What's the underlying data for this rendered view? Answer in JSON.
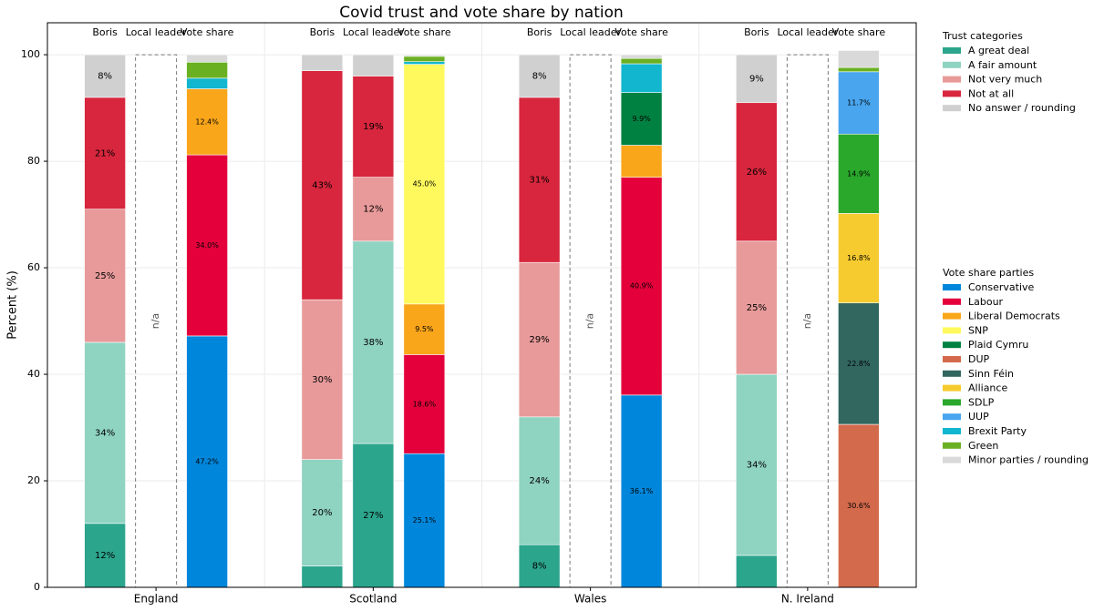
{
  "chart_data": {
    "type": "grouped_stacked_bar",
    "title": "Covid trust and vote share by nation",
    "y_label": "Percent (%)",
    "ylim": [
      0,
      106
    ],
    "yticks": [
      0,
      20,
      40,
      60,
      80,
      100
    ],
    "grid": true,
    "categories": [
      "England",
      "Scotland",
      "Wales",
      "N. Ireland"
    ],
    "bar_labels": [
      "Boris",
      "Local leader",
      "Vote share"
    ],
    "na_label": "n/a",
    "trust_legend_title": "Trust categories",
    "trust_series": [
      {
        "name": "A great deal",
        "color": "#2ca58d",
        "boris": [
          12,
          4,
          8,
          6
        ],
        "boris_labels": [
          "12%",
          null,
          "8%",
          null
        ],
        "local": [
          null,
          27,
          null,
          null
        ],
        "local_labels": [
          null,
          "27%",
          null,
          null
        ]
      },
      {
        "name": "A fair amount",
        "color": "#8fd3c1",
        "boris": [
          34,
          20,
          24,
          34
        ],
        "boris_labels": [
          "34%",
          "20%",
          "24%",
          "34%"
        ],
        "local": [
          null,
          38,
          null,
          null
        ],
        "local_labels": [
          null,
          "38%",
          null,
          null
        ]
      },
      {
        "name": "Not very much",
        "color": "#e89a9a",
        "boris": [
          25,
          30,
          29,
          25
        ],
        "boris_labels": [
          "25%",
          "30%",
          "29%",
          "25%"
        ],
        "local": [
          null,
          12,
          null,
          null
        ],
        "local_labels": [
          null,
          "12%",
          null,
          null
        ]
      },
      {
        "name": "Not at all",
        "color": "#d7263d",
        "boris": [
          21,
          43,
          31,
          26
        ],
        "boris_labels": [
          "21%",
          "43%",
          "31%",
          "26%"
        ],
        "local": [
          null,
          19,
          null,
          null
        ],
        "local_labels": [
          null,
          "19%",
          null,
          null
        ]
      },
      {
        "name": "No answer / rounding",
        "color": "#d0d0d0",
        "boris": [
          8,
          3,
          8,
          9
        ],
        "boris_labels": [
          "8%",
          null,
          "8%",
          "9%"
        ],
        "local": [
          null,
          4,
          null,
          null
        ],
        "local_labels": [
          null,
          null,
          null,
          null
        ]
      }
    ],
    "vote_legend_title": "Vote share parties",
    "vote_series": [
      {
        "name": "Conservative",
        "color": "#0087dc",
        "values": [
          47.2,
          25.1,
          36.1,
          null
        ],
        "value_labels": [
          "47.2%",
          "25.1%",
          "36.1%",
          null
        ]
      },
      {
        "name": "Labour",
        "color": "#e4003b",
        "values": [
          34.0,
          18.6,
          40.9,
          null
        ],
        "value_labels": [
          "34.0%",
          "18.6%",
          "40.9%",
          null
        ]
      },
      {
        "name": "Liberal Democrats",
        "color": "#faa61a",
        "values": [
          12.4,
          9.5,
          6.0,
          null
        ],
        "value_labels": [
          "12.4%",
          "9.5%",
          null,
          null
        ]
      },
      {
        "name": "SNP",
        "color": "#fff95d",
        "values": [
          null,
          45.0,
          null,
          null
        ],
        "value_labels": [
          null,
          "45.0%",
          null,
          null
        ]
      },
      {
        "name": "Plaid Cymru",
        "color": "#008142",
        "values": [
          null,
          null,
          9.9,
          null
        ],
        "value_labels": [
          null,
          null,
          "9.9%",
          null
        ]
      },
      {
        "name": "DUP",
        "color": "#d46a4c",
        "values": [
          null,
          null,
          null,
          30.6
        ],
        "value_labels": [
          null,
          null,
          null,
          "30.6%"
        ]
      },
      {
        "name": "Sinn Féin",
        "color": "#326760",
        "values": [
          null,
          null,
          null,
          22.8
        ],
        "value_labels": [
          null,
          null,
          null,
          "22.8%"
        ]
      },
      {
        "name": "Alliance",
        "color": "#f6cb2f",
        "values": [
          null,
          null,
          null,
          16.8
        ],
        "value_labels": [
          null,
          null,
          null,
          "16.8%"
        ]
      },
      {
        "name": "SDLP",
        "color": "#2aa82c",
        "values": [
          null,
          null,
          null,
          14.9
        ],
        "value_labels": [
          null,
          null,
          null,
          "14.9%"
        ]
      },
      {
        "name": "UUP",
        "color": "#48a5ee",
        "values": [
          null,
          null,
          null,
          11.7
        ],
        "value_labels": [
          null,
          null,
          null,
          "11.7%"
        ]
      },
      {
        "name": "Brexit Party",
        "color": "#12b6cf",
        "values": [
          2.0,
          0.5,
          5.4,
          null
        ],
        "value_labels": [
          null,
          null,
          null,
          null
        ]
      },
      {
        "name": "Green",
        "color": "#6ab023",
        "values": [
          3.0,
          1.0,
          1.0,
          0.8
        ],
        "value_labels": [
          null,
          null,
          null,
          null
        ]
      },
      {
        "name": "Minor parties / rounding",
        "color": "#d9d9d9",
        "values": [
          1.4,
          0.3,
          0.7,
          3.2
        ],
        "value_labels": [
          null,
          null,
          null,
          null
        ]
      }
    ]
  }
}
